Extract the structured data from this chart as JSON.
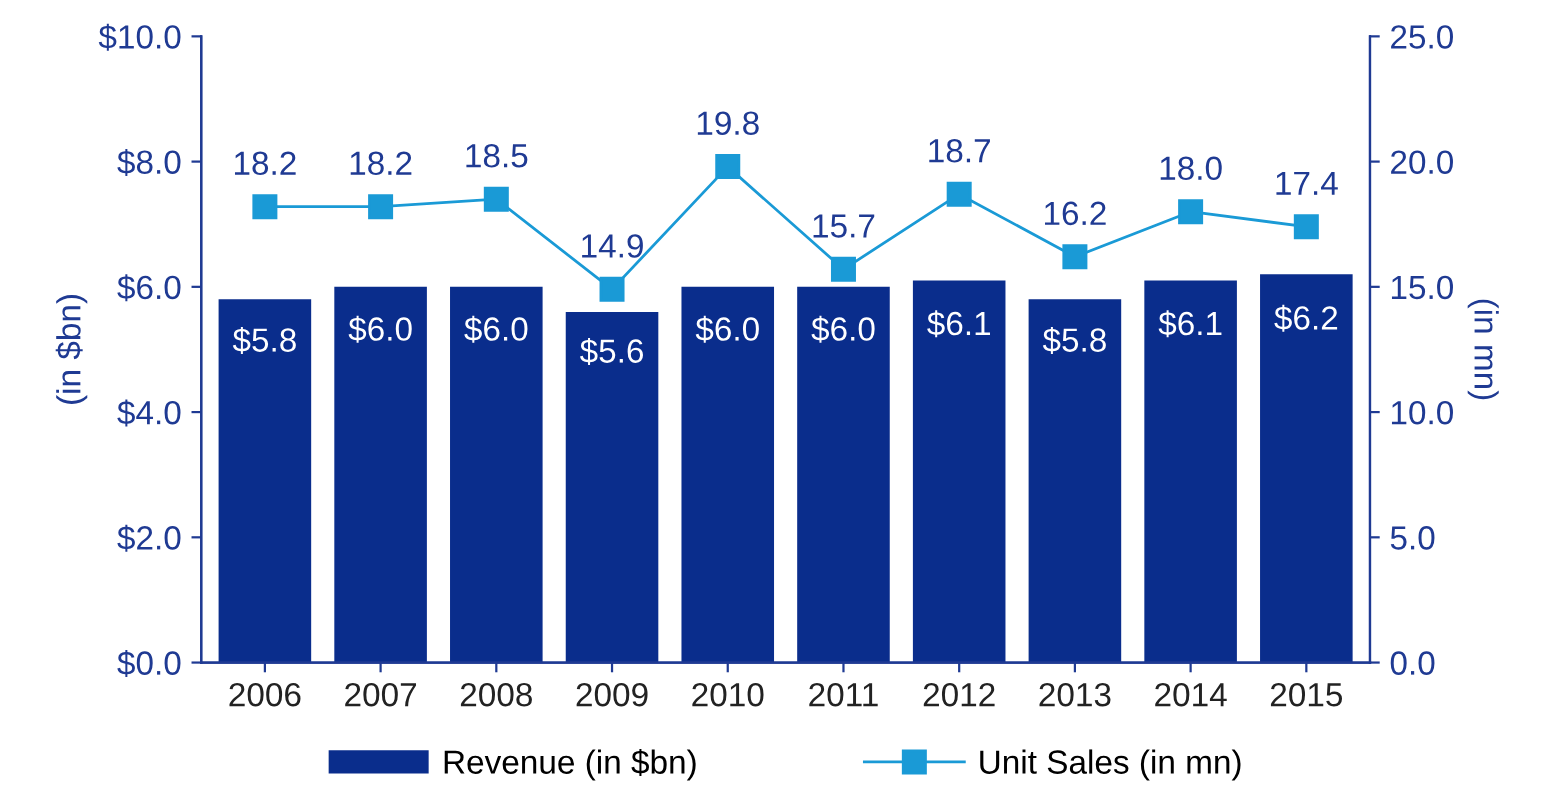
{
  "chart_data": {
    "type": "bar",
    "categories": [
      "2006",
      "2007",
      "2008",
      "2009",
      "2010",
      "2011",
      "2012",
      "2013",
      "2014",
      "2015"
    ],
    "ylabel": "(in $bn)",
    "y2label": "(in mn)",
    "series": [
      {
        "name": "Revenue (in $bn)",
        "color": "#0a2d8c",
        "values": [
          5.8,
          6.0,
          6.0,
          5.6,
          6.0,
          6.0,
          6.1,
          5.8,
          6.1,
          6.2
        ],
        "value_labels": [
          "$5.8",
          "$6.0",
          "$6.0",
          "$5.6",
          "$6.0",
          "$6.0",
          "$6.1",
          "$5.8",
          "$6.1",
          "$6.2"
        ]
      },
      {
        "name": "Unit Sales (in mn)",
        "type": "line",
        "axis": "y2",
        "color": "#1a9ad6",
        "marker": "square",
        "line_style": "solid",
        "values": [
          18.2,
          18.2,
          18.5,
          14.9,
          19.8,
          15.7,
          18.7,
          16.2,
          18.0,
          17.4
        ],
        "value_labels": [
          "18.2",
          "18.2",
          "18.5",
          "14.9",
          "19.8",
          "15.7",
          "18.7",
          "16.2",
          "18.0",
          "17.4"
        ]
      }
    ],
    "ylim": [
      0,
      10
    ],
    "yticks": [
      {
        "value": 0,
        "label": "$0.0"
      },
      {
        "value": 2,
        "label": "$2.0"
      },
      {
        "value": 4,
        "label": "$4.0"
      },
      {
        "value": 6,
        "label": "$6.0"
      },
      {
        "value": 8,
        "label": "$8.0"
      },
      {
        "value": 10,
        "label": "$10.0"
      }
    ],
    "y2lim": [
      0,
      25
    ],
    "y2ticks": [
      {
        "value": 0,
        "label": "0.0"
      },
      {
        "value": 5,
        "label": "5.0"
      },
      {
        "value": 10,
        "label": "10.0"
      },
      {
        "value": 15,
        "label": "15.0"
      },
      {
        "value": 20,
        "label": "20.0"
      },
      {
        "value": 25,
        "label": "25.0"
      }
    ],
    "grid": false,
    "legend": "bottom"
  }
}
